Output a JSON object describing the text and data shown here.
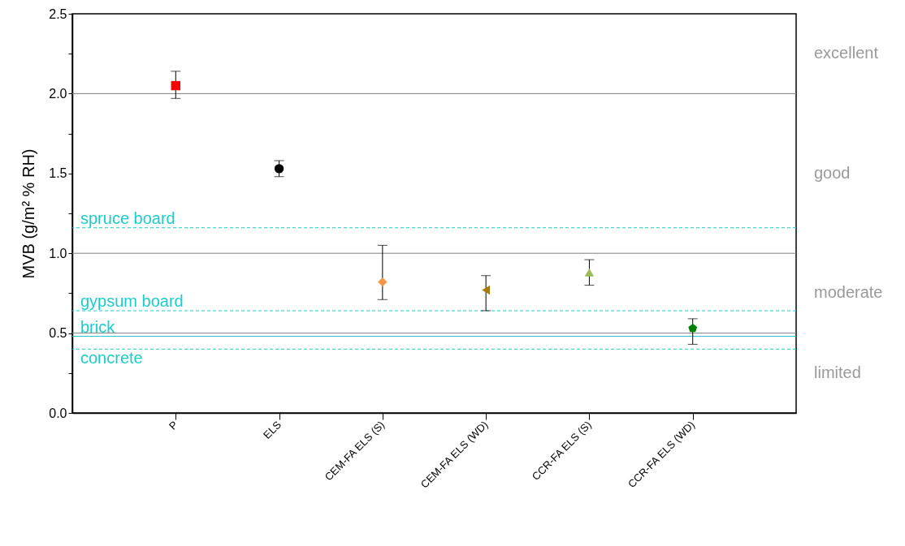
{
  "chart_data": {
    "type": "scatter",
    "ylabel": "MVB (g/m² % RH)",
    "categories": [
      "P",
      "ELS",
      "CEM-FA ELS (S)",
      "CEM-FA ELS (WD)",
      "CCR-FA ELS (S)",
      "CCR-FA ELS (WD)"
    ],
    "series": [
      {
        "color": "#ff0000",
        "marker": "square",
        "values": [
          2.05,
          null,
          null,
          null,
          null,
          null
        ],
        "errors": [
          [
            1.97,
            2.14
          ],
          null,
          null,
          null,
          null,
          null
        ]
      },
      {
        "color": "#000000",
        "marker": "circle",
        "values": [
          null,
          1.53,
          null,
          null,
          null,
          null
        ],
        "errors": [
          null,
          [
            1.48,
            1.58
          ],
          null,
          null,
          null,
          null
        ]
      },
      {
        "color": "#f79646",
        "marker": "diamond",
        "values": [
          null,
          null,
          0.82,
          null,
          null,
          null
        ],
        "errors": [
          null,
          null,
          [
            0.71,
            1.05
          ],
          null,
          null,
          null
        ]
      },
      {
        "color": "#a87a14",
        "marker": "triangle-left",
        "values": [
          null,
          null,
          null,
          0.77,
          null,
          null
        ],
        "errors": [
          null,
          null,
          null,
          [
            0.64,
            0.86
          ],
          null,
          null
        ]
      },
      {
        "color": "#9bbb59",
        "marker": "triangle",
        "values": [
          null,
          null,
          null,
          null,
          0.88,
          null
        ],
        "errors": [
          null,
          null,
          null,
          null,
          [
            0.8,
            0.96
          ],
          null
        ]
      },
      {
        "color": "#008000",
        "values": [
          null,
          null,
          null,
          null,
          null,
          0.53
        ],
        "errors": [
          null,
          null,
          null,
          null,
          null,
          [
            0.43,
            0.59
          ]
        ]
      }
    ],
    "ylim": [
      0,
      2.5
    ],
    "yticks": [
      {
        "value": 0,
        "label": "0.0"
      },
      {
        "value": 0.25,
        "label": null
      },
      0.5,
      {
        "value": 0.75,
        "label": null
      },
      {
        "value": 1,
        "label": "1.0"
      },
      {
        "value": 1.25,
        "label": null
      },
      1.5,
      {
        "value": 1.75,
        "label": null
      },
      {
        "value": 2,
        "label": "2.0"
      },
      {
        "value": 2.25,
        "label": null
      },
      2.5
    ],
    "ref_lines": [
      {
        "axis": "y",
        "value": 2,
        "color": "#808080",
        "line_style": "solid"
      },
      {
        "axis": "y",
        "value": 1,
        "color": "#808080",
        "line_style": "solid"
      },
      {
        "axis": "y",
        "value": 0.5,
        "color": "#808080",
        "line_style": "solid"
      },
      {
        "axis": "y",
        "value": 1.16,
        "label": "spruce board",
        "color": "#1ecbcb",
        "line_style": "dashed"
      },
      {
        "axis": "y",
        "value": 0.64,
        "label": "gypsum board",
        "color": "#1ecbcb",
        "line_style": "dashed"
      },
      {
        "axis": "y",
        "value": 0.48,
        "label": "brick",
        "color": "#1ecbcb",
        "line_style": "solid"
      },
      {
        "axis": "y",
        "value": 0.4,
        "label": "concrete",
        "color": "#1ecbcb",
        "line_style": "dashed"
      }
    ],
    "annotations": [
      "excellent",
      "good",
      "moderate",
      "limited"
    ],
    "grid": false
  }
}
